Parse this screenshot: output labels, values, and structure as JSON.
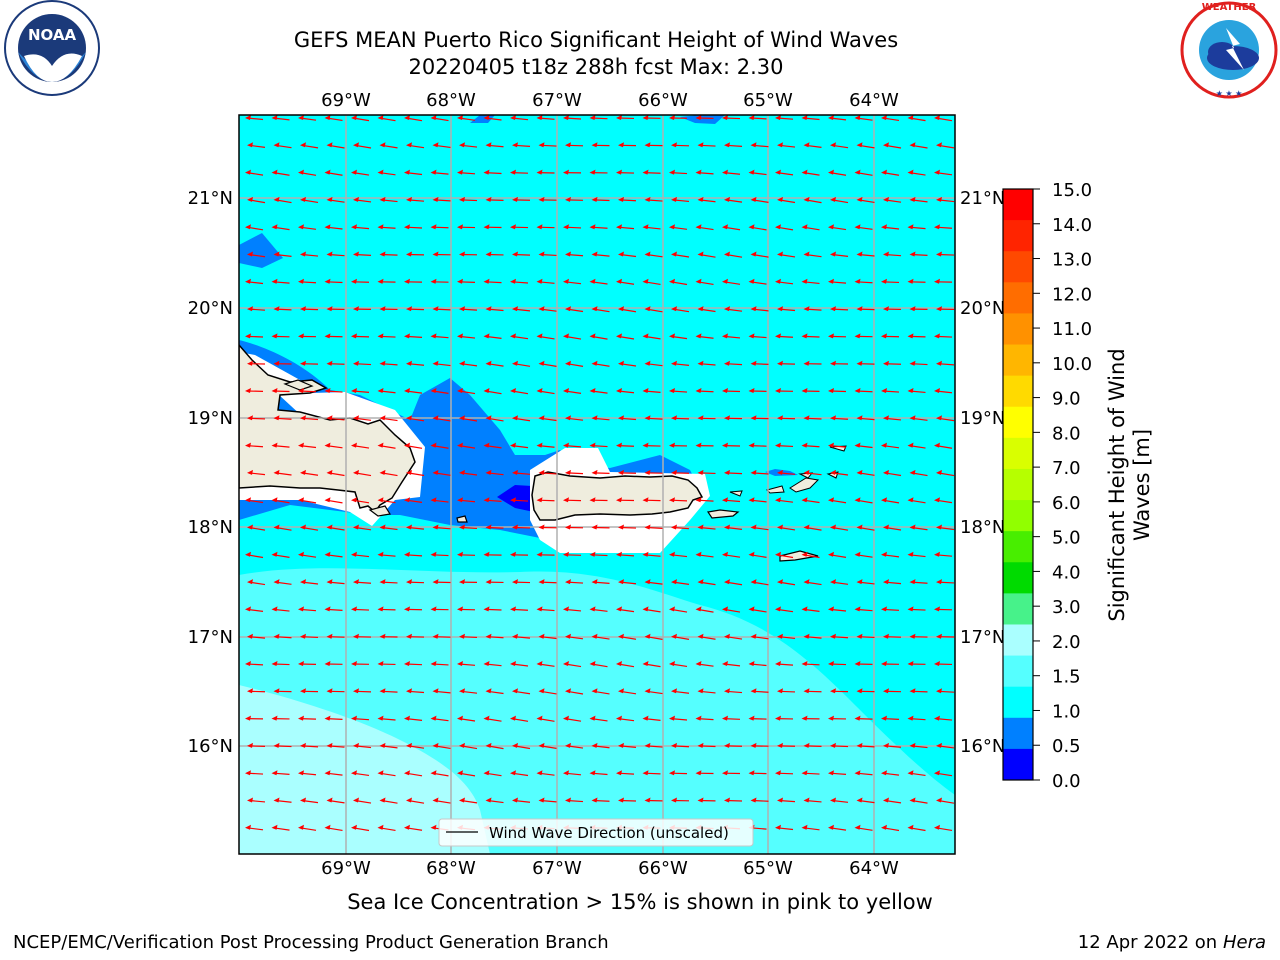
{
  "header": {
    "title_line1": "GEFS MEAN Puerto Rico Significant Height of Wind Waves",
    "title_line2": "20220405 t18z 288h fcst   Max: 2.30"
  },
  "logos": {
    "left": {
      "icon": "noaa-logo",
      "text": "NOAA",
      "ring_text": "NATIONAL OCEANIC AND ATMOSPHERIC ADMINISTRATION · U.S. DEPARTMENT OF COMMERCE"
    },
    "right": {
      "icon": "nws-logo",
      "ring_text": "NATIONAL WEATHER SERVICE"
    }
  },
  "map": {
    "lon_labels": [
      "69°W",
      "68°W",
      "67°W",
      "66°W",
      "65°W",
      "64°W"
    ],
    "lat_labels": [
      "21°N",
      "20°N",
      "19°N",
      "18°N",
      "17°N",
      "16°N"
    ],
    "legend_label": "Wind Wave Direction (unscaled)",
    "colors": {
      "land": "#efedde",
      "coast": "#000000",
      "arrow": "#ff0000",
      "grid": "#b0b0b0"
    }
  },
  "colorbar": {
    "label": "Significant Height of Wind Waves [m]",
    "label_line1": "Significant Height of Wind",
    "label_line2": "Waves [m]",
    "ticks": [
      "15.0",
      "14.0",
      "13.0",
      "12.0",
      "11.0",
      "10.0",
      "9.0",
      "8.0",
      "7.0",
      "6.0",
      "5.0",
      "4.0",
      "3.0",
      "2.0",
      "1.5",
      "1.0",
      "0.5",
      "0.0"
    ],
    "colors_top_to_bottom": [
      "#ff0000",
      "#ff2400",
      "#ff4900",
      "#ff6d00",
      "#ff9100",
      "#ffb600",
      "#ffda00",
      "#ffff00",
      "#d9ff00",
      "#b6ff00",
      "#91ff00",
      "#48ee00",
      "#00db00",
      "#47f28a",
      "#aaffff",
      "#55ffff",
      "#00ffff",
      "#0080ff",
      "#0000ff"
    ]
  },
  "caption": "Sea Ice Concentration > 15% is shown in pink to yellow",
  "footer": {
    "left": "NCEP/EMC/Verification Post Processing Product Generation Branch",
    "right_prefix": "12 Apr 2022 on ",
    "right_machine": "Hera"
  }
}
